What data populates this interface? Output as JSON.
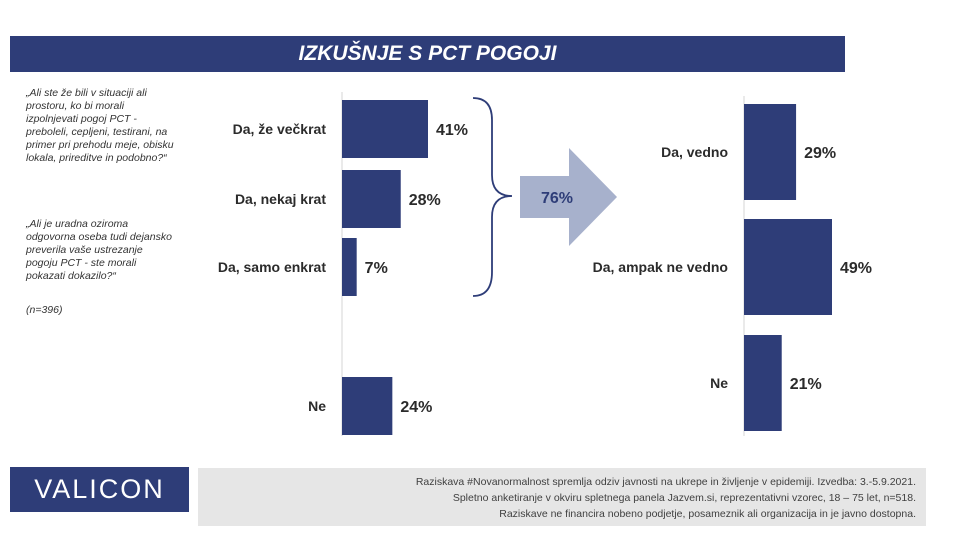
{
  "header": {
    "title": "IZKUŠNJE S PCT POGOJI"
  },
  "question": {
    "q1": "„Ali ste že bili v situaciji ali prostoru, ko bi morali izpolnjevati pogoj PCT - preboleli, cepljeni, testirani, na primer pri prehodu meje, obisku lokala, prireditve in podobno?“",
    "q2": "„Ali je uradna oziroma odgovorna oseba tudi dejansko preverila vaše ustrezanje pogoju PCT - ste morali pokazati dokazilo?“",
    "sample": "(n=396)"
  },
  "chart_data": [
    {
      "type": "bar",
      "orientation": "horizontal",
      "categories": [
        "Da, že večkrat",
        "Da, nekaj krat",
        "Da, samo enkrat",
        "Ne"
      ],
      "values": [
        41,
        28,
        7,
        24
      ],
      "value_labels": [
        "41%",
        "28%",
        "7%",
        "24%"
      ],
      "color": "#2e3d78"
    },
    {
      "type": "bar",
      "orientation": "horizontal",
      "categories": [
        "Da, vedno",
        "Da, ampak ne vedno",
        "Ne"
      ],
      "values": [
        29,
        49,
        21
      ],
      "value_labels": [
        "29%",
        "49%",
        "21%"
      ],
      "color": "#2e3d78"
    }
  ],
  "summary": {
    "label": "76%",
    "arrow_color": "#a7b1cc"
  },
  "footer": {
    "logo": "VALICON",
    "line1": "Raziskava #Novanormalnost spremlja odziv javnosti na ukrepe in življenje v epidemiji. Izvedba: 3.-5.9.2021.",
    "line2": "Spletno anketiranje v okviru spletnega panela Jazvem.si, reprezentativni vzorec, 18 – 75 let, n=518.",
    "line3": "Raziskave ne financira nobeno podjetje, posameznik ali organizacija in je javno dostopna."
  }
}
